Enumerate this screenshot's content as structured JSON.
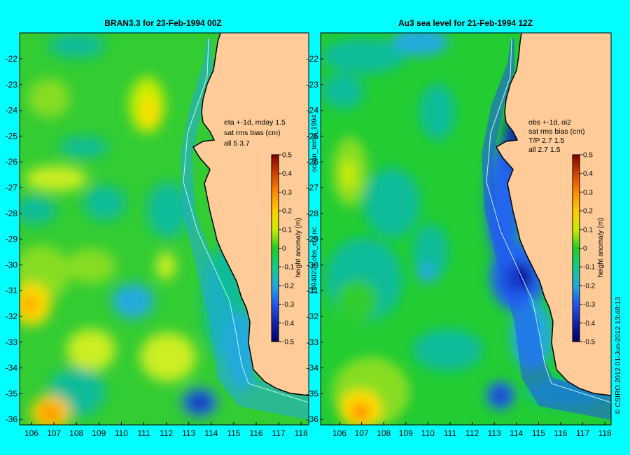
{
  "left_map": {
    "title": "BRAN3.3 for 23-Feb-1994 00Z",
    "annotation": [
      "eta +-1d, mday 1.5",
      "sat rms bias (cm)",
      "all 5 3.7"
    ]
  },
  "right_map": {
    "title": "Au3 sea level  for 21-Feb-1994 12Z",
    "annotation": [
      "obs +-1d, oi2",
      "sat rms bias (cm)",
      "T/P  2.7 1.5",
      "all 2.7 1.5"
    ]
  },
  "axes": {
    "lon_ticks": [
      "106",
      "107",
      "108",
      "109",
      "110",
      "111",
      "112",
      "113",
      "114",
      "115",
      "116",
      "117",
      "118"
    ],
    "lat_ticks": [
      "-22",
      "-23",
      "-24",
      "-25",
      "-26",
      "-27",
      "-28",
      "-29",
      "-30",
      "-31",
      "-32",
      "-33",
      "-34",
      "-35",
      "-36"
    ]
  },
  "colorbar": {
    "label": "height anomaly (m)",
    "ticks": [
      "0.5",
      "0.4",
      "0.3",
      "0.2",
      "0.1",
      "0",
      "-0.1",
      "-0.2",
      "-0.3",
      "-0.4",
      "-0.5"
    ]
  },
  "side_labels": {
    "middle_top": "ocean_temp_1994",
    "middle_bottom": "19940221.obs_eta.nc",
    "right_edge": "© CSIRO 2012   01-Jun-2012 13:48:13"
  },
  "colors": {
    "background": "#00ffff",
    "land": "#ffcc99",
    "ocean_base": "#22cc33"
  }
}
